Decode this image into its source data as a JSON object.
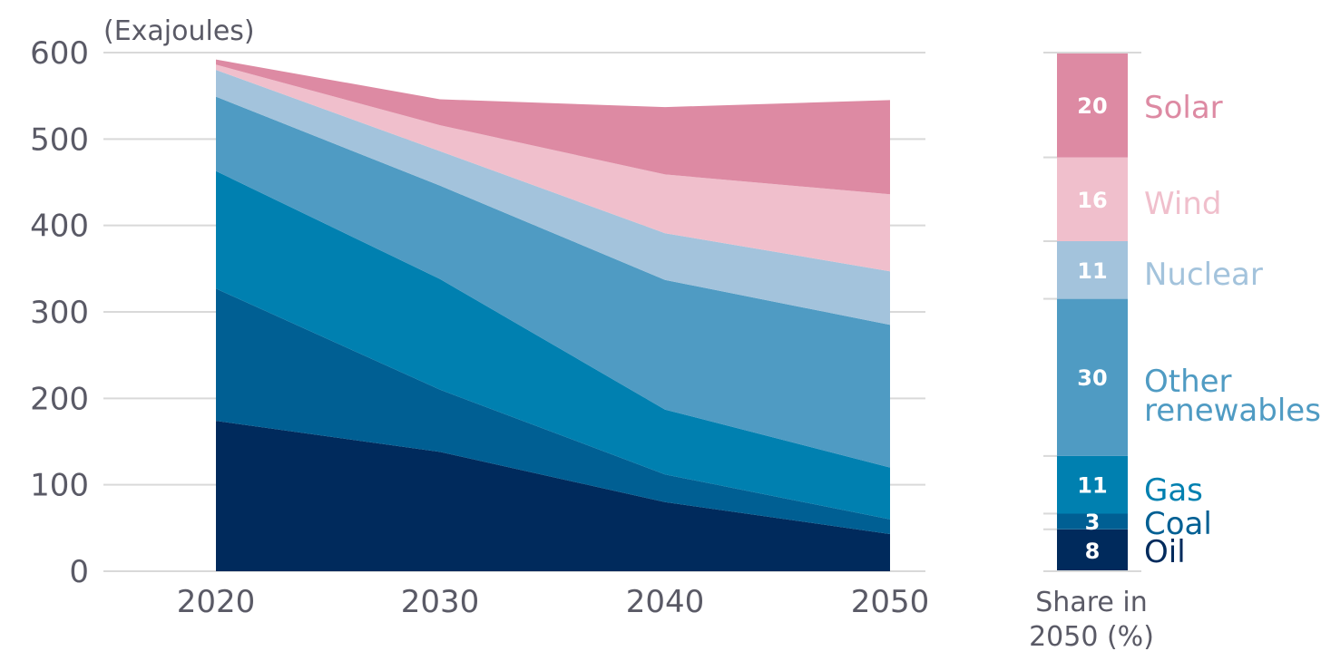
{
  "chart_data": [
    {
      "type": "area",
      "stacked": true,
      "y_unit_label": "(Exajoules)",
      "x": [
        "2020",
        "2030",
        "2040",
        "2050"
      ],
      "ylim": [
        0,
        600
      ],
      "y_ticks": [
        "0",
        "100",
        "200",
        "300",
        "400",
        "500",
        "600"
      ],
      "grid": "horizontal",
      "series": [
        {
          "name": "Oil",
          "values": [
            174,
            138,
            80,
            43
          ],
          "color": "#002a5c"
        },
        {
          "name": "Coal",
          "values": [
            153,
            72,
            32,
            17
          ],
          "color": "#005f93"
        },
        {
          "name": "Gas",
          "values": [
            136,
            128,
            75,
            60
          ],
          "color": "#0080b0"
        },
        {
          "name": "Other renewables",
          "values": [
            86,
            108,
            150,
            165
          ],
          "color": "#4f9bc3"
        },
        {
          "name": "Nuclear",
          "values": [
            31,
            40,
            54,
            62
          ],
          "color": "#a3c3dc"
        },
        {
          "name": "Wind",
          "values": [
            6,
            30,
            68,
            89
          ],
          "color": "#f0bfcc"
        },
        {
          "name": "Solar",
          "values": [
            6,
            30,
            78,
            109
          ],
          "color": "#dd8aa3"
        }
      ]
    },
    {
      "type": "bar",
      "stacked": true,
      "caption": [
        "Share in",
        "2050 (%)"
      ],
      "categories": [
        "Oil",
        "Coal",
        "Gas",
        "Other renewables",
        "Nuclear",
        "Wind",
        "Solar"
      ],
      "values": [
        8,
        3,
        11,
        30,
        11,
        16,
        20
      ],
      "labels": [
        "Oil",
        "Coal",
        "Gas",
        [
          "Other",
          "renewables"
        ],
        "Nuclear",
        "Wind",
        "Solar"
      ],
      "colors": [
        "#002a5c",
        "#005f93",
        "#0080b0",
        "#4f9bc3",
        "#a3c3dc",
        "#f0bfcc",
        "#dd8aa3"
      ]
    }
  ]
}
